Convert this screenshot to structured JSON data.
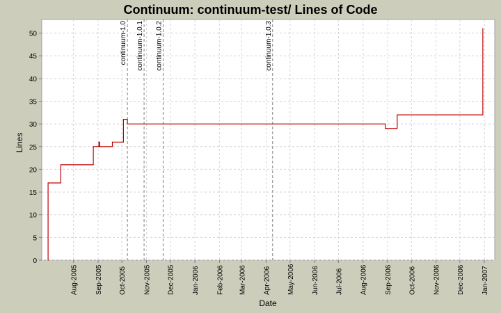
{
  "chart_data": {
    "type": "line",
    "title": "Continuum: continuum-test/ Lines of Code",
    "xlabel": "Date",
    "ylabel": "Lines",
    "ylim": [
      0,
      53
    ],
    "xlim": [
      "2005-06-22",
      "2007-01-14"
    ],
    "y_ticks": [
      0,
      5,
      10,
      15,
      20,
      25,
      30,
      35,
      40,
      45,
      50
    ],
    "x_ticks": [
      {
        "date": "2005-08-01",
        "label": "Aug-2005"
      },
      {
        "date": "2005-09-01",
        "label": "Sep-2005"
      },
      {
        "date": "2005-10-01",
        "label": "Oct-2005"
      },
      {
        "date": "2005-11-01",
        "label": "Nov-2005"
      },
      {
        "date": "2005-12-01",
        "label": "Dec-2005"
      },
      {
        "date": "2006-01-01",
        "label": "Jan-2006"
      },
      {
        "date": "2006-02-01",
        "label": "Feb-2006"
      },
      {
        "date": "2006-03-01",
        "label": "Mar-2006"
      },
      {
        "date": "2006-04-01",
        "label": "Apr-2006"
      },
      {
        "date": "2006-05-01",
        "label": "May-2006"
      },
      {
        "date": "2006-06-01",
        "label": "Jun-2006"
      },
      {
        "date": "2006-07-01",
        "label": "Jul-2006"
      },
      {
        "date": "2006-08-01",
        "label": "Aug-2006"
      },
      {
        "date": "2006-09-01",
        "label": "Sep-2006"
      },
      {
        "date": "2006-10-01",
        "label": "Oct-2006"
      },
      {
        "date": "2006-11-01",
        "label": "Nov-2006"
      },
      {
        "date": "2006-12-01",
        "label": "Dec-2006"
      },
      {
        "date": "2007-01-01",
        "label": "Jan-2007"
      }
    ],
    "grid": true,
    "series": [
      {
        "color": "#c00000",
        "step": true,
        "points": [
          {
            "x": "2005-06-30",
            "y": 0
          },
          {
            "x": "2005-06-30",
            "y": 17
          },
          {
            "x": "2005-07-16",
            "y": 21
          },
          {
            "x": "2005-08-26",
            "y": 25
          },
          {
            "x": "2005-09-02",
            "y": 26
          },
          {
            "x": "2005-09-03",
            "y": 25
          },
          {
            "x": "2005-09-19",
            "y": 26
          },
          {
            "x": "2005-10-03",
            "y": 31
          },
          {
            "x": "2005-10-08",
            "y": 30
          },
          {
            "x": "2006-08-29",
            "y": 29
          },
          {
            "x": "2006-09-13",
            "y": 32
          },
          {
            "x": "2006-12-29",
            "y": 32
          },
          {
            "x": "2006-12-30",
            "y": 51
          }
        ]
      }
    ],
    "markers": [
      {
        "date": "2005-10-08",
        "label": "continuum-1.0"
      },
      {
        "date": "2005-10-29",
        "label": "continuum-1.0.1"
      },
      {
        "date": "2005-11-22",
        "label": "continuum-1.0.2"
      },
      {
        "date": "2006-04-09",
        "label": "continuum-1.0.3"
      }
    ],
    "colors": {
      "background": "#cccdbb",
      "plot_background": "#ffffff",
      "grid": "#d4d4d4",
      "marker_line": "#808080"
    }
  }
}
